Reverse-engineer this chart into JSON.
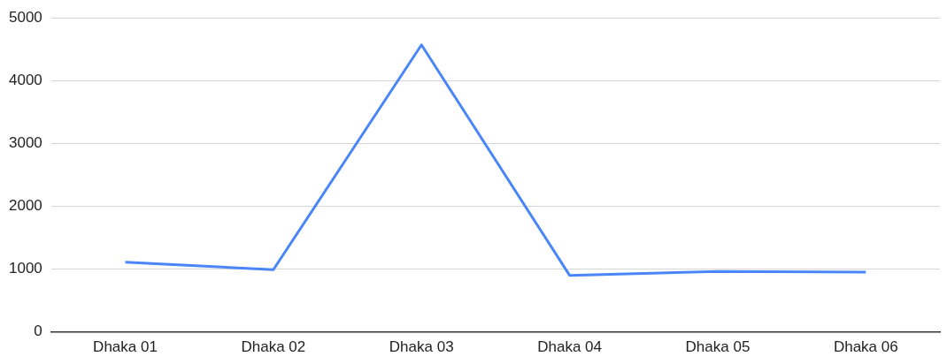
{
  "chart_data": {
    "type": "line",
    "categories": [
      "Dhaka 01",
      "Dhaka 02",
      "Dhaka 03",
      "Dhaka 04",
      "Dhaka 05",
      "Dhaka 06"
    ],
    "series": [
      {
        "color": "#4a86f7",
        "values": [
          1110,
          990,
          4570,
          900,
          960,
          950
        ]
      }
    ],
    "ylim": [
      0,
      5000
    ],
    "yticks": [
      0,
      1000,
      2000,
      3000,
      4000,
      5000
    ],
    "grid": "y",
    "legend": false,
    "marker": "none",
    "line_style": "solid"
  }
}
